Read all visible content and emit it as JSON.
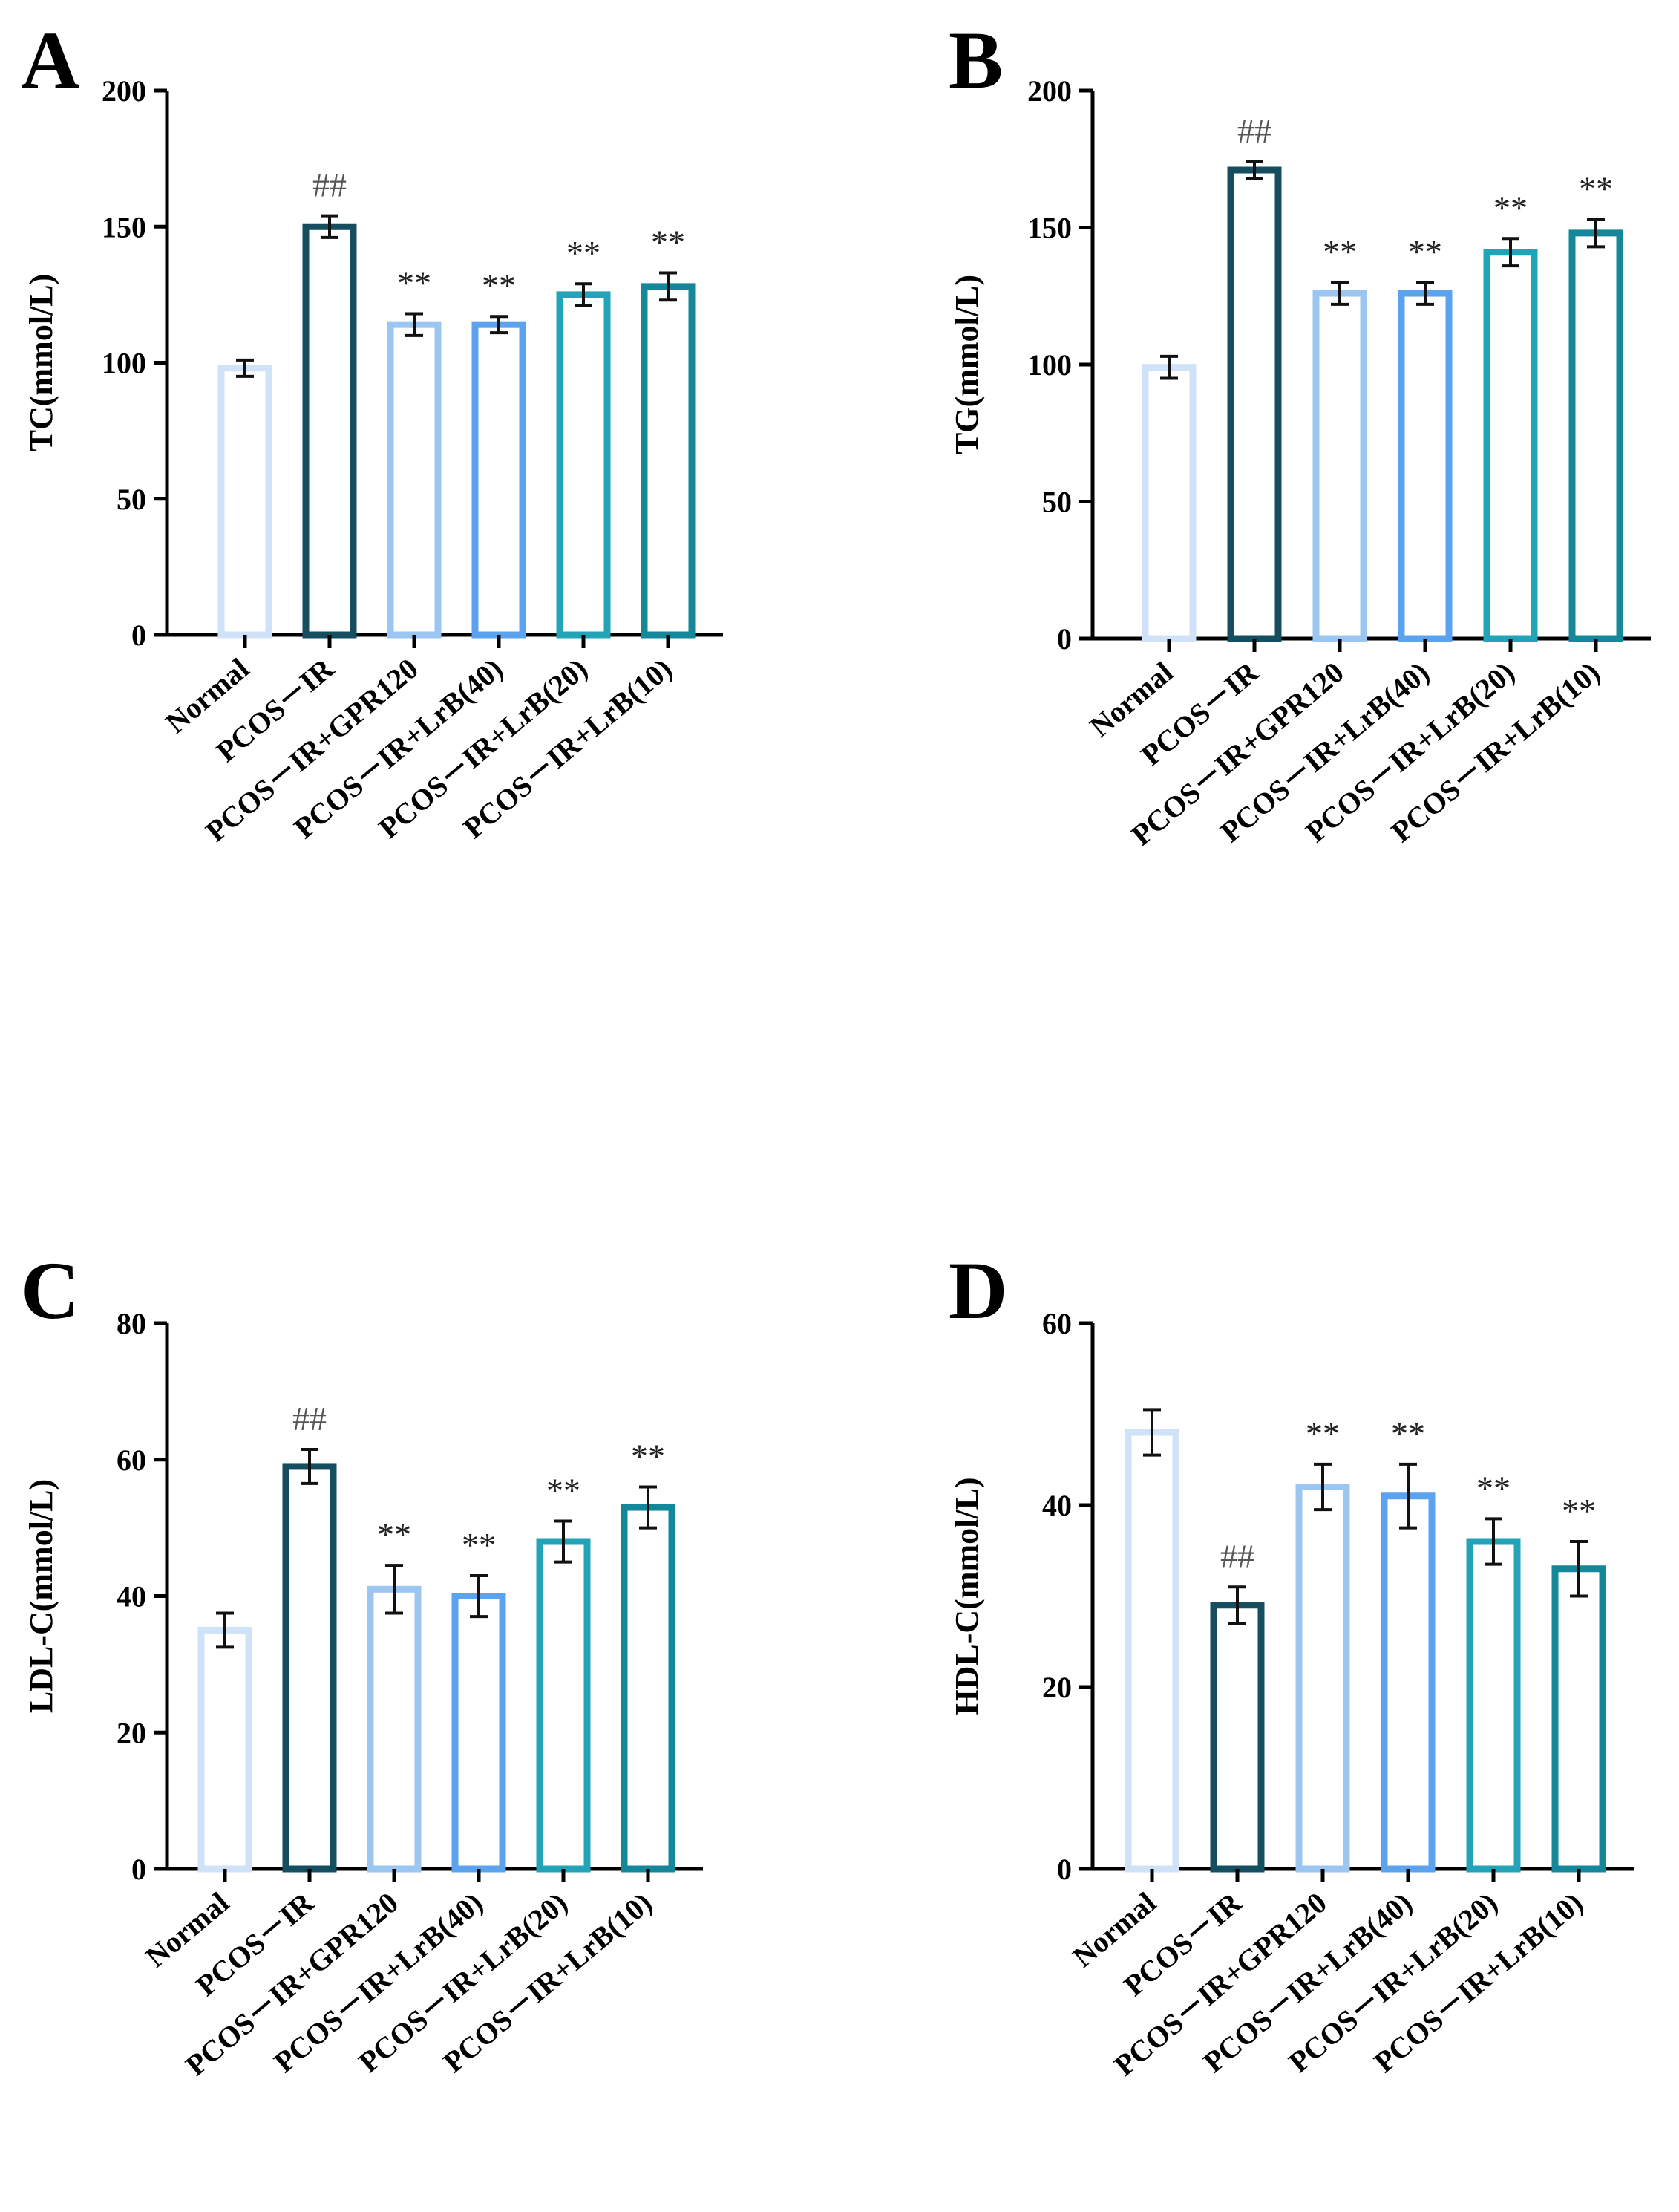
{
  "figure": {
    "categories": [
      "Normal",
      "PCOS－IR",
      "PCOS－IR+GPR120",
      "PCOS－IR+LrB(40)",
      "PCOS－IR+LrB(20)",
      "PCOS－IR+LrB(10)"
    ],
    "bar_colors": [
      "#cfe2f7",
      "#144e5f",
      "#9cc6f2",
      "#5ba3ef",
      "#22a3b8",
      "#15879a"
    ]
  },
  "chart_data": [
    {
      "panel": "A",
      "type": "bar",
      "ylabel": "TC(mmol/L)",
      "ylim": [
        0,
        200
      ],
      "yticks": [
        0,
        50,
        100,
        150,
        200
      ],
      "values": [
        98,
        150,
        114,
        114,
        125,
        128
      ],
      "errors": [
        3,
        4,
        4,
        3,
        4,
        5
      ],
      "annotations": [
        "",
        "##",
        "**",
        "**",
        "**",
        "**"
      ]
    },
    {
      "panel": "B",
      "type": "bar",
      "ylabel": "TG(mmol/L)",
      "ylim": [
        0,
        200
      ],
      "yticks": [
        0,
        50,
        100,
        150,
        200
      ],
      "values": [
        99,
        171,
        126,
        126,
        141,
        148
      ],
      "errors": [
        4,
        3,
        4,
        4,
        5,
        5
      ],
      "annotations": [
        "",
        "##",
        "**",
        "**",
        "**",
        "**"
      ]
    },
    {
      "panel": "C",
      "type": "bar",
      "ylabel": "LDL-C(mmol/L)",
      "ylim": [
        0,
        80
      ],
      "yticks": [
        0,
        20,
        40,
        60,
        80
      ],
      "values": [
        35,
        59,
        41,
        40,
        48,
        53
      ],
      "errors": [
        2.5,
        2.5,
        3.5,
        3,
        3,
        3
      ],
      "annotations": [
        "",
        "##",
        "**",
        "**",
        "**",
        "**"
      ]
    },
    {
      "panel": "D",
      "type": "bar",
      "ylabel": "HDL-C(mmol/L)",
      "ylim": [
        0,
        60
      ],
      "yticks": [
        0,
        20,
        40,
        60
      ],
      "values": [
        48,
        29,
        42,
        41,
        36,
        33
      ],
      "errors": [
        2.5,
        2,
        2.5,
        3.5,
        2.5,
        3
      ],
      "annotations": [
        "",
        "##",
        "**",
        "**",
        "**",
        "**"
      ]
    }
  ]
}
